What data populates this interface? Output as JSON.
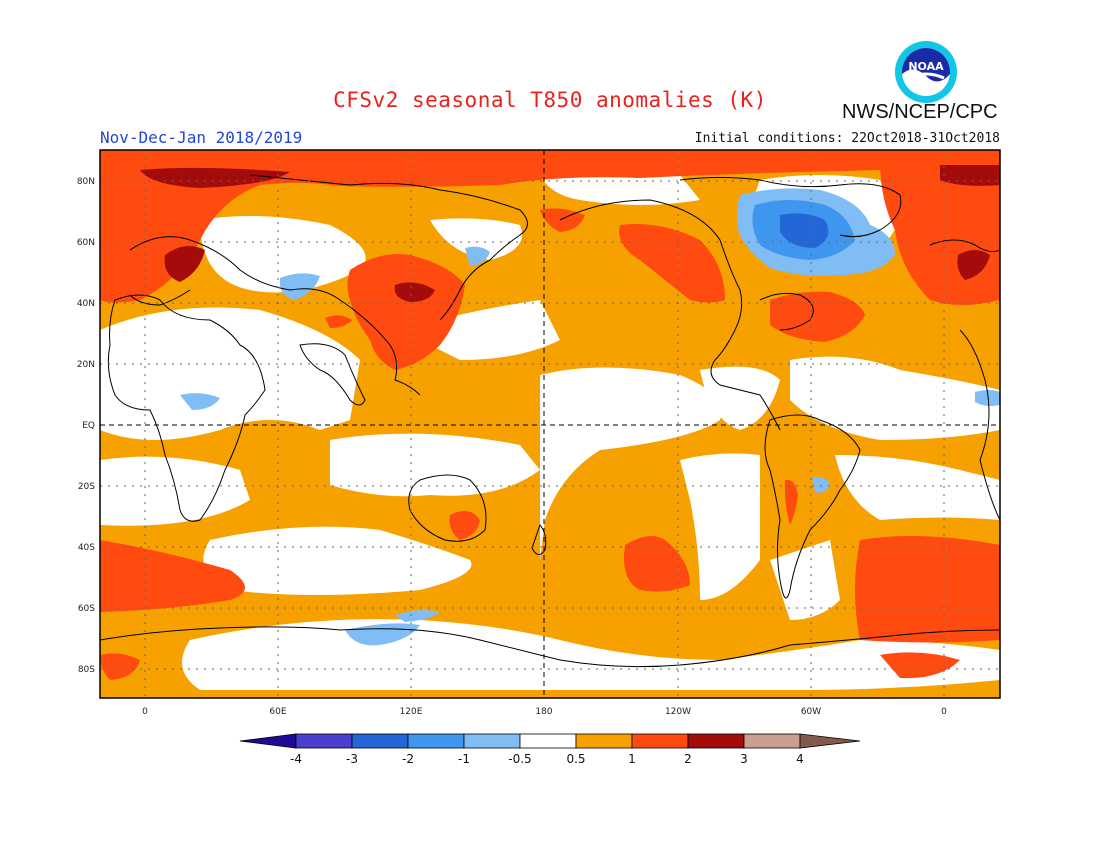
{
  "header": {
    "title": "CFSv2 seasonal T850 anomalies (K)",
    "season": "Nov-Dec-Jan 2018/2019",
    "initial_conditions": "Initial conditions: 22Oct2018-31Oct2018",
    "agency": "NWS/NCEP/CPC",
    "logo_text": "NOAA"
  },
  "map": {
    "latitude_labels": [
      "80N",
      "60N",
      "40N",
      "20N",
      "EQ",
      "20S",
      "40S",
      "60S",
      "80S"
    ],
    "longitude_labels": [
      "0",
      "60E",
      "120E",
      "180",
      "120W",
      "60W",
      "0"
    ]
  },
  "colorbar": {
    "labels": [
      "-4",
      "-3",
      "-2",
      "-1",
      "-0.5",
      "0.5",
      "1",
      "2",
      "3",
      "4"
    ],
    "colors": {
      "lt_minus4": "#1e0a9a",
      "m4_m3": "#4a3fd0",
      "m3_m2": "#2266d8",
      "m2_m1": "#3e96ef",
      "m1_m05": "#80bdf5",
      "neutral": "#ffffff",
      "p05_1": "#f7a100",
      "p1_2": "#ff4a10",
      "p2_3": "#a40c0c",
      "p3_4": "#c9a090",
      "gt4": "#82594c"
    }
  }
}
